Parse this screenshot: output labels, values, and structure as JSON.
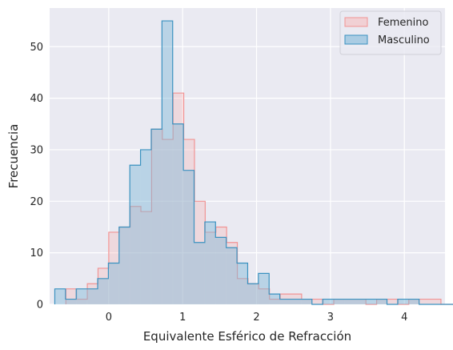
{
  "chart_data": {
    "type": "histogram",
    "xlabel": "Equivalente Esférico de Refracción",
    "ylabel": "Frecuencia",
    "xlim": [
      -0.8,
      4.55
    ],
    "ylim": [
      0,
      57.5
    ],
    "x_ticks": [
      0,
      1,
      2,
      3,
      4
    ],
    "y_ticks": [
      0,
      10,
      20,
      30,
      40,
      50
    ],
    "grid": true,
    "legend_position": "top-right",
    "bin_width": 0.145,
    "series": [
      {
        "name": "Femenino",
        "fill_color": "#f7b6b6",
        "line_color": "#f19494",
        "fill_opacity": 0.35,
        "bin_start": -0.58,
        "counts": [
          3,
          1,
          4,
          7,
          14,
          15,
          19,
          18,
          34,
          32,
          41,
          32,
          20,
          14,
          15,
          12,
          5,
          4,
          3,
          1,
          2,
          2,
          1,
          1,
          0,
          1,
          1,
          1,
          0,
          1,
          1,
          0,
          1,
          1,
          1,
          0,
          0,
          0,
          0,
          1
        ]
      },
      {
        "name": "Masculino",
        "fill_color": "#7fb8d8",
        "line_color": "#3b92c0",
        "fill_opacity": 0.45,
        "bin_start": -0.73,
        "counts": [
          3,
          1,
          3,
          3,
          5,
          8,
          15,
          27,
          30,
          34,
          55,
          35,
          26,
          12,
          16,
          13,
          11,
          8,
          4,
          6,
          2,
          1,
          1,
          1,
          0,
          1,
          1,
          1,
          1,
          1,
          1,
          0,
          1,
          1,
          0,
          0,
          0,
          0,
          0,
          0,
          1
        ]
      }
    ]
  }
}
